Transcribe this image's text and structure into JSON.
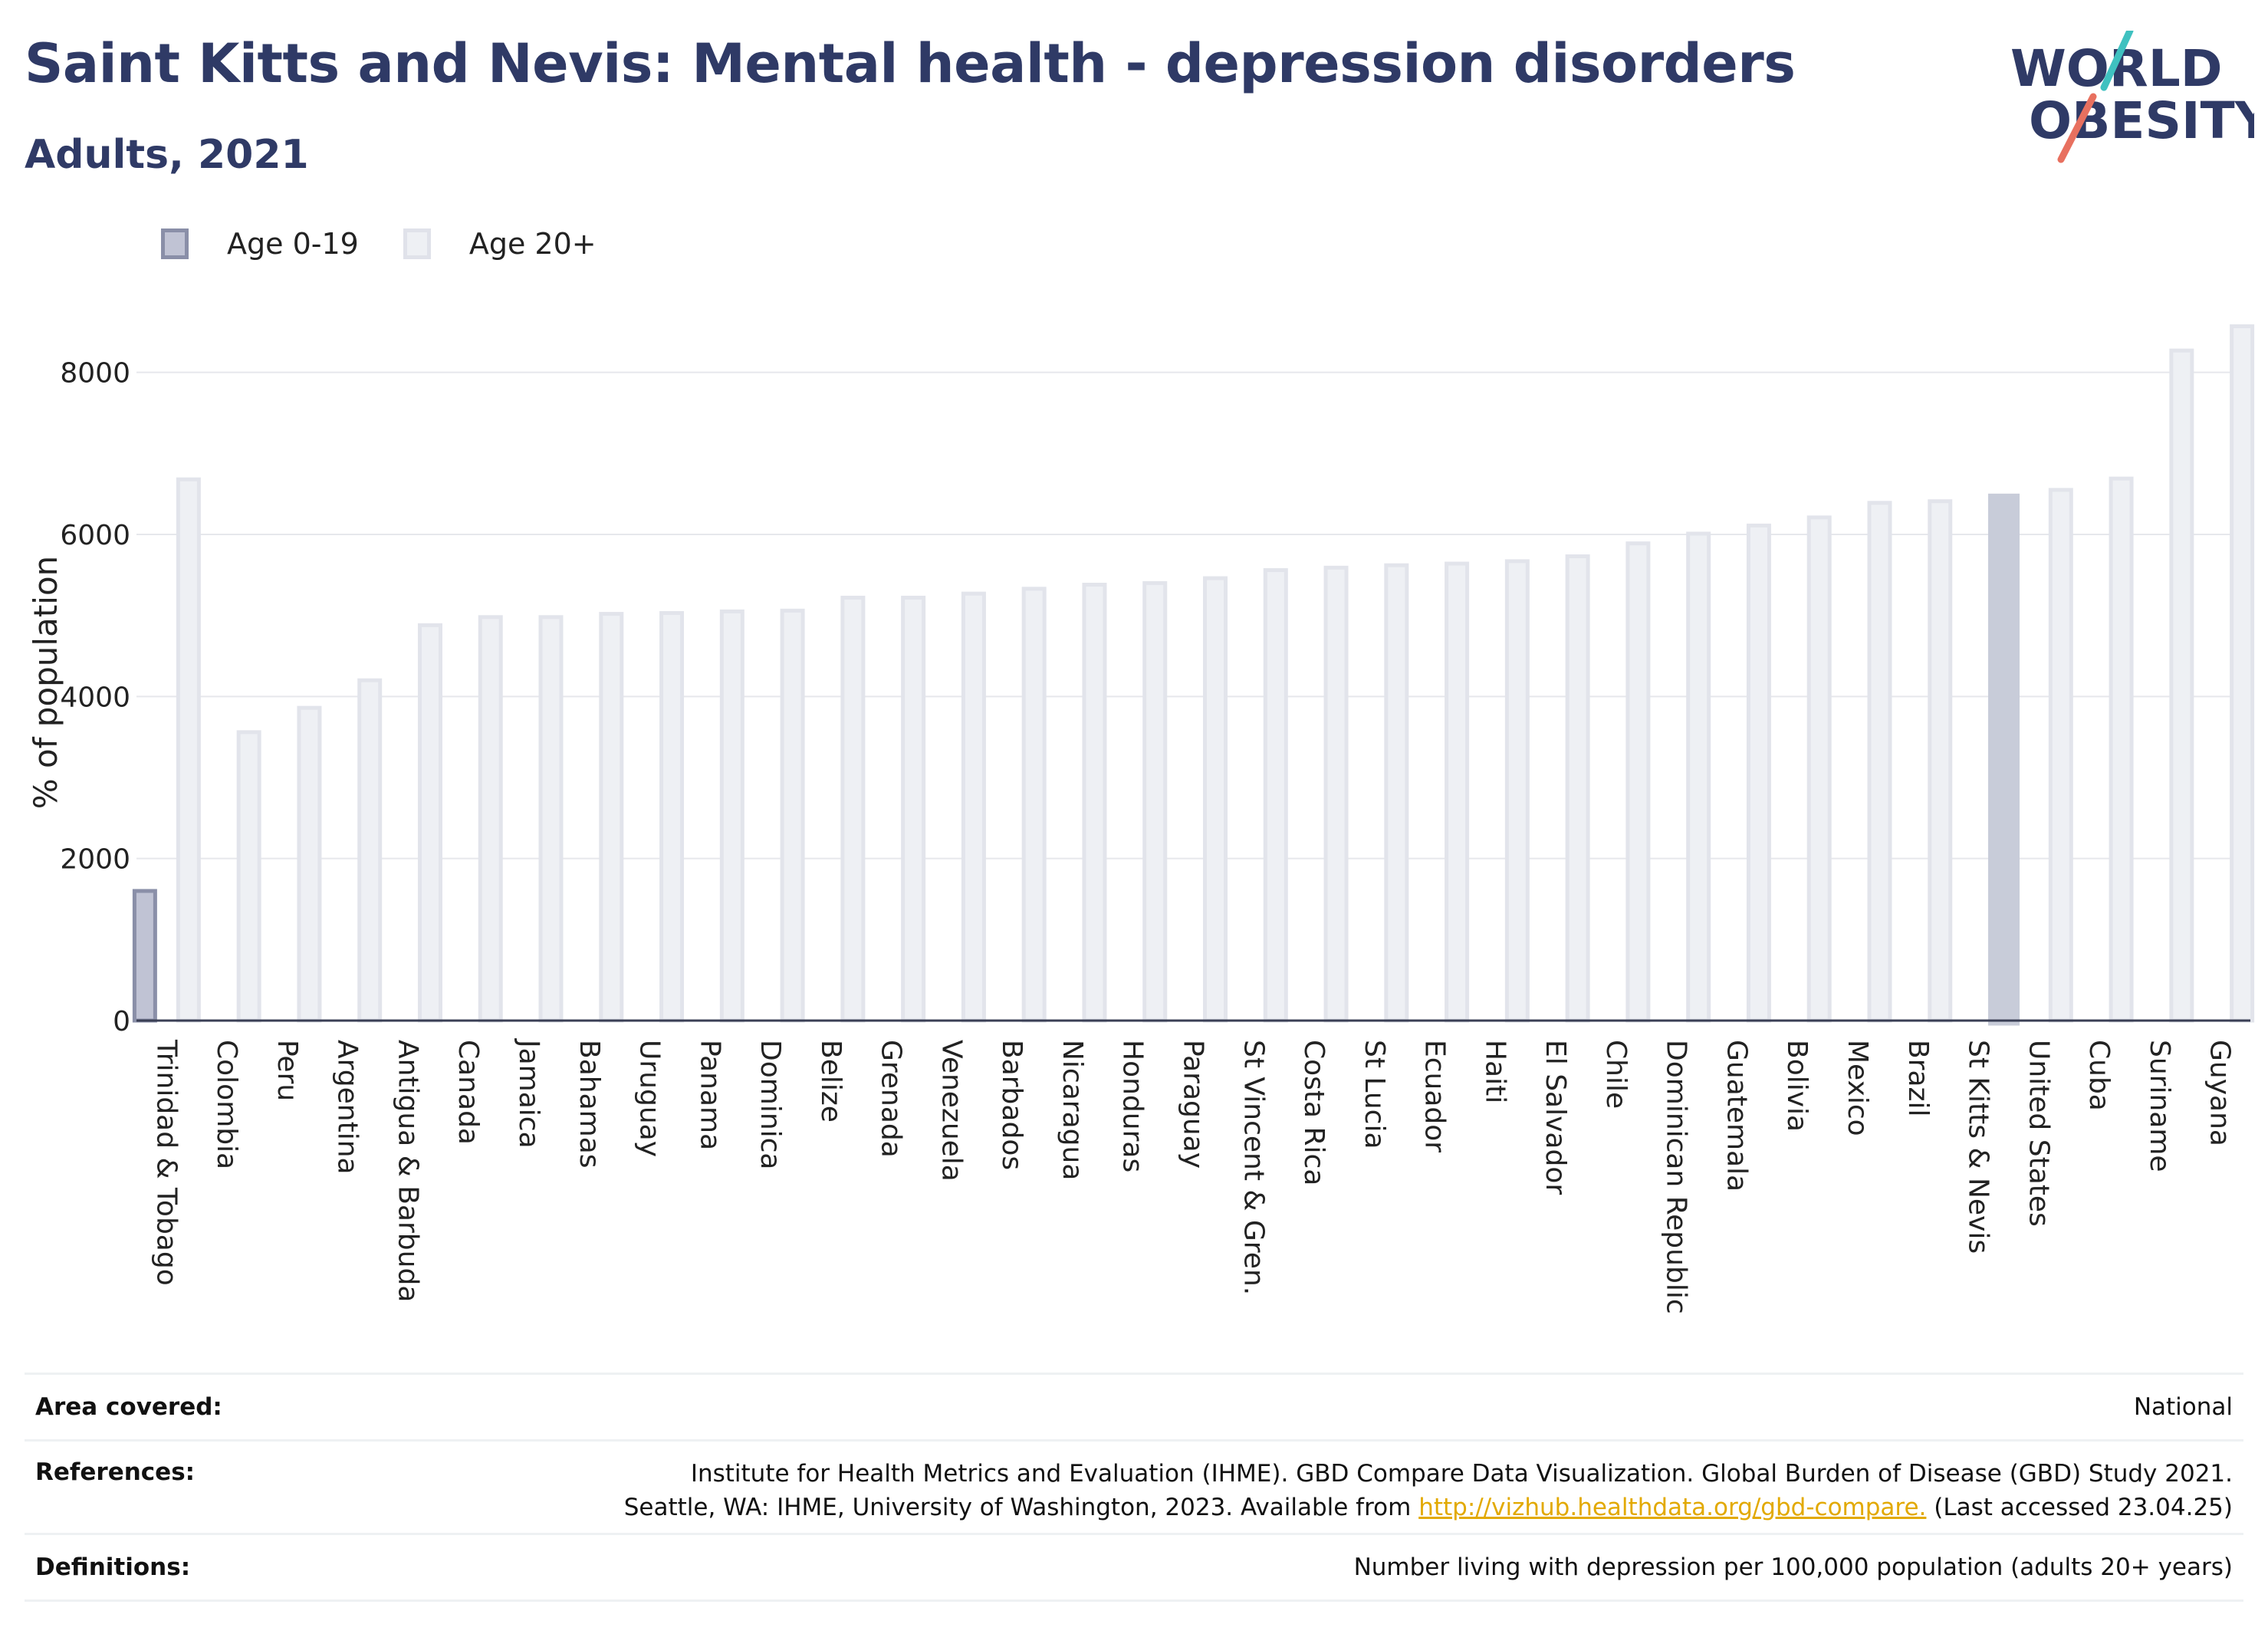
{
  "header": {
    "title": "Saint Kitts and Nevis: Mental health - depression disorders",
    "subtitle": "Adults, 2021"
  },
  "logo": {
    "line1": "WORLD",
    "line2": "OBESITY"
  },
  "legend": [
    {
      "label": "Age 0-19",
      "color": "#c0c3d4",
      "border": "#8a8fa8"
    },
    {
      "label": "Age 20+",
      "color": "#eef0f4",
      "border": "#e0e2ea"
    }
  ],
  "colors": {
    "highlight": "#c8ccd9",
    "bar_fill": "#eef0f4",
    "bar_stroke": "#e2e4eb",
    "age019_fill": "#c0c3d4",
    "age019_stroke": "#8a8fa8",
    "axis_text": "#222222"
  },
  "chart_data": {
    "type": "bar",
    "title": "Saint Kitts and Nevis: Mental health - depression disorders",
    "subtitle": "Adults, 2021",
    "ylabel": "% of population",
    "xlabel": "",
    "ylim": [
      0,
      9000
    ],
    "yticks": [
      0,
      2000,
      4000,
      6000,
      8000
    ],
    "grid": true,
    "legend_position": "top-left",
    "highlight_category": "St Kitts & Nevis",
    "categories": [
      "Trinidad & Tobago",
      "Colombia",
      "Peru",
      "Argentina",
      "Antigua & Barbuda",
      "Canada",
      "Jamaica",
      "Bahamas",
      "Uruguay",
      "Panama",
      "Dominica",
      "Belize",
      "Grenada",
      "Venezuela",
      "Barbados",
      "Nicaragua",
      "Honduras",
      "Paraguay",
      "St Vincent & Gren.",
      "Costa Rica",
      "St Lucia",
      "Ecuador",
      "Haiti",
      "El Salvador",
      "Chile",
      "Dominican Republic",
      "Guatemala",
      "Bolivia",
      "Mexico",
      "Brazil",
      "St Kitts & Nevis",
      "United States",
      "Cuba",
      "Suriname",
      "Guyana"
    ],
    "series": [
      {
        "name": "Age 0-19",
        "values": [
          1600,
          null,
          null,
          null,
          null,
          null,
          null,
          null,
          null,
          null,
          null,
          null,
          null,
          null,
          null,
          null,
          null,
          null,
          null,
          null,
          null,
          null,
          null,
          null,
          null,
          null,
          null,
          null,
          null,
          null,
          null,
          null,
          null,
          null,
          null
        ]
      },
      {
        "name": "Age 20+",
        "values": [
          6680,
          3560,
          3860,
          4200,
          4880,
          4980,
          4980,
          5020,
          5030,
          5050,
          5060,
          5220,
          5220,
          5270,
          5330,
          5380,
          5400,
          5460,
          5560,
          5590,
          5620,
          5640,
          5670,
          5730,
          5890,
          6010,
          6110,
          6210,
          6390,
          6410,
          6480,
          6550,
          6690,
          8270,
          8570
        ]
      }
    ]
  },
  "footer": {
    "area_label": "Area covered:",
    "area_value": "National",
    "references_label": "References:",
    "references_line1": "Institute for Health Metrics and Evaluation (IHME). GBD Compare Data Visualization. Global Burden of Disease (GBD) Study 2021.",
    "references_line2_pre": "Seattle, WA: IHME, University of Washington, 2023. Available from ",
    "references_link": "http://vizhub.healthdata.org/gbd-compare.",
    "references_line2_post": " (Last accessed 23.04.25)",
    "definitions_label": "Definitions:",
    "definitions_value": "Number living with depression per 100,000 population (adults 20+ years)"
  }
}
